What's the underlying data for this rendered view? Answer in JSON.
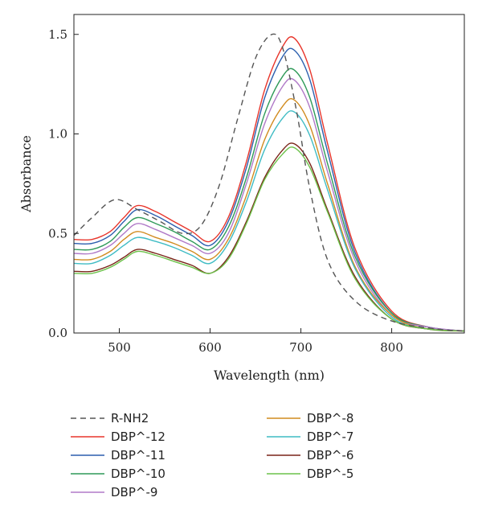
{
  "chart_data": {
    "type": "line",
    "xlabel": "Wavelength (nm)",
    "ylabel": "Absorbance",
    "xlim": [
      450,
      880
    ],
    "ylim": [
      0.0,
      1.6
    ],
    "x_ticks": [
      500,
      600,
      700,
      800
    ],
    "y_ticks": [
      0.0,
      0.5,
      1.0,
      1.5
    ],
    "y_tick_labels": [
      "0.0",
      "0.5",
      "1.0",
      "1.5"
    ],
    "grid": false,
    "legend_position": "bottom",
    "series": [
      {
        "name": "R-NH2",
        "color": "#555555",
        "dash": true,
        "x": [
          450,
          470,
          495,
          520,
          545,
          570,
          590,
          610,
          630,
          650,
          668,
          680,
          695,
          710,
          730,
          760,
          800,
          850,
          880
        ],
        "y": [
          0.49,
          0.58,
          0.67,
          0.62,
          0.56,
          0.5,
          0.54,
          0.74,
          1.07,
          1.38,
          1.5,
          1.43,
          1.12,
          0.72,
          0.36,
          0.16,
          0.06,
          0.02,
          0.01
        ]
      },
      {
        "name": "DBP^-12",
        "color": "#e8352b",
        "x": [
          450,
          470,
          490,
          505,
          520,
          540,
          560,
          580,
          600,
          620,
          640,
          660,
          680,
          693,
          710,
          730,
          760,
          800,
          840,
          880
        ],
        "y": [
          0.47,
          0.47,
          0.51,
          0.58,
          0.64,
          0.61,
          0.56,
          0.51,
          0.46,
          0.58,
          0.86,
          1.22,
          1.44,
          1.48,
          1.32,
          0.94,
          0.42,
          0.11,
          0.03,
          0.01
        ]
      },
      {
        "name": "DBP^-11",
        "color": "#2c5fae",
        "x": [
          450,
          470,
          490,
          505,
          520,
          540,
          560,
          580,
          600,
          620,
          640,
          660,
          680,
          693,
          710,
          730,
          760,
          800,
          840,
          880
        ],
        "y": [
          0.45,
          0.45,
          0.49,
          0.56,
          0.62,
          0.59,
          0.54,
          0.49,
          0.44,
          0.56,
          0.83,
          1.18,
          1.39,
          1.42,
          1.27,
          0.9,
          0.4,
          0.1,
          0.03,
          0.01
        ]
      },
      {
        "name": "DBP^-10",
        "color": "#2f9a58",
        "x": [
          450,
          470,
          490,
          505,
          520,
          540,
          560,
          580,
          600,
          620,
          640,
          660,
          680,
          693,
          710,
          730,
          760,
          800,
          840,
          880
        ],
        "y": [
          0.42,
          0.42,
          0.46,
          0.53,
          0.58,
          0.55,
          0.51,
          0.46,
          0.42,
          0.53,
          0.78,
          1.1,
          1.29,
          1.32,
          1.18,
          0.84,
          0.38,
          0.1,
          0.03,
          0.01
        ]
      },
      {
        "name": "DBP^-9",
        "color": "#b07ac8",
        "x": [
          450,
          470,
          490,
          505,
          520,
          540,
          560,
          580,
          600,
          620,
          640,
          660,
          680,
          693,
          710,
          730,
          760,
          800,
          840,
          880
        ],
        "y": [
          0.4,
          0.4,
          0.44,
          0.5,
          0.55,
          0.52,
          0.48,
          0.44,
          0.4,
          0.5,
          0.75,
          1.05,
          1.24,
          1.27,
          1.13,
          0.8,
          0.36,
          0.09,
          0.03,
          0.01
        ]
      },
      {
        "name": "DBP^-8",
        "color": "#d18b1f",
        "x": [
          450,
          470,
          490,
          505,
          520,
          540,
          560,
          580,
          600,
          620,
          640,
          660,
          680,
          693,
          710,
          730,
          760,
          800,
          840,
          880
        ],
        "y": [
          0.37,
          0.37,
          0.41,
          0.47,
          0.51,
          0.48,
          0.45,
          0.41,
          0.37,
          0.47,
          0.69,
          0.97,
          1.14,
          1.17,
          1.04,
          0.74,
          0.33,
          0.09,
          0.02,
          0.01
        ]
      },
      {
        "name": "DBP^-7",
        "color": "#3fbcc4",
        "x": [
          450,
          470,
          490,
          505,
          520,
          540,
          560,
          580,
          600,
          620,
          640,
          660,
          680,
          693,
          710,
          730,
          760,
          800,
          840,
          880
        ],
        "y": [
          0.35,
          0.35,
          0.39,
          0.44,
          0.48,
          0.46,
          0.43,
          0.39,
          0.35,
          0.45,
          0.66,
          0.92,
          1.08,
          1.11,
          0.99,
          0.71,
          0.32,
          0.08,
          0.02,
          0.01
        ]
      },
      {
        "name": "DBP^-6",
        "color": "#7a2418",
        "x": [
          450,
          470,
          490,
          505,
          520,
          540,
          560,
          580,
          600,
          620,
          640,
          660,
          680,
          693,
          710,
          730,
          760,
          800,
          840,
          880
        ],
        "y": [
          0.31,
          0.31,
          0.34,
          0.38,
          0.42,
          0.4,
          0.37,
          0.34,
          0.3,
          0.38,
          0.56,
          0.78,
          0.92,
          0.95,
          0.85,
          0.61,
          0.28,
          0.07,
          0.02,
          0.01
        ]
      },
      {
        "name": "DBP^-5",
        "color": "#6cc24a",
        "x": [
          450,
          470,
          490,
          505,
          520,
          540,
          560,
          580,
          600,
          620,
          640,
          660,
          680,
          693,
          710,
          730,
          760,
          800,
          840,
          880
        ],
        "y": [
          0.3,
          0.3,
          0.33,
          0.37,
          0.41,
          0.39,
          0.36,
          0.33,
          0.3,
          0.37,
          0.55,
          0.77,
          0.9,
          0.93,
          0.83,
          0.6,
          0.27,
          0.07,
          0.02,
          0.01
        ]
      }
    ]
  }
}
